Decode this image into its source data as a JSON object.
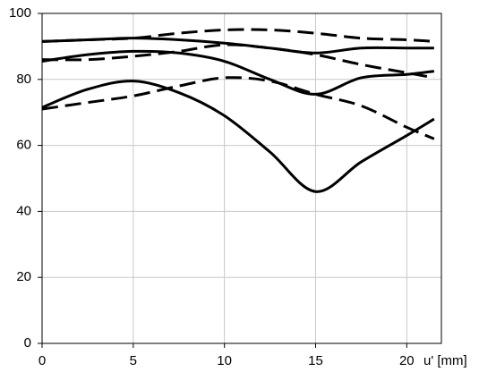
{
  "chart_data": {
    "type": "line",
    "xlabel": "u' [mm]",
    "x": [
      0,
      2.5,
      5,
      7.5,
      10,
      12.5,
      15,
      17.5,
      20,
      21.5
    ],
    "series": [
      {
        "color": "#000000",
        "dash": false,
        "values": [
          91.5,
          92,
          92.5,
          92,
          91,
          89.5,
          88,
          89.5,
          89.5,
          89.5
        ]
      },
      {
        "color": "#000000",
        "dash": false,
        "values": [
          85.5,
          87.5,
          88.5,
          88,
          85.5,
          80,
          75.5,
          80.5,
          81.5,
          82.5
        ]
      },
      {
        "color": "#000000",
        "dash": false,
        "values": [
          71.5,
          77,
          79.5,
          76,
          69,
          58,
          46,
          55,
          63,
          68
        ]
      },
      {
        "color": "#000000",
        "dash": true,
        "values": [
          91.5,
          92,
          92.5,
          94,
          95,
          95,
          94,
          92.5,
          92,
          91.5
        ]
      },
      {
        "color": "#000000",
        "dash": true,
        "values": [
          86,
          86,
          87,
          88.5,
          90.5,
          89.5,
          87.5,
          84.5,
          82,
          80.5
        ]
      },
      {
        "color": "#000000",
        "dash": true,
        "values": [
          71,
          73,
          75,
          78,
          80.5,
          79.5,
          75.5,
          72,
          65.5,
          62
        ]
      }
    ],
    "xlim": [
      0,
      21.9
    ],
    "xticks": [
      0,
      5,
      10,
      15,
      20
    ],
    "ylim": [
      0,
      100
    ],
    "yticks": [
      0,
      20,
      40,
      60,
      80,
      100
    ],
    "grid": true
  }
}
